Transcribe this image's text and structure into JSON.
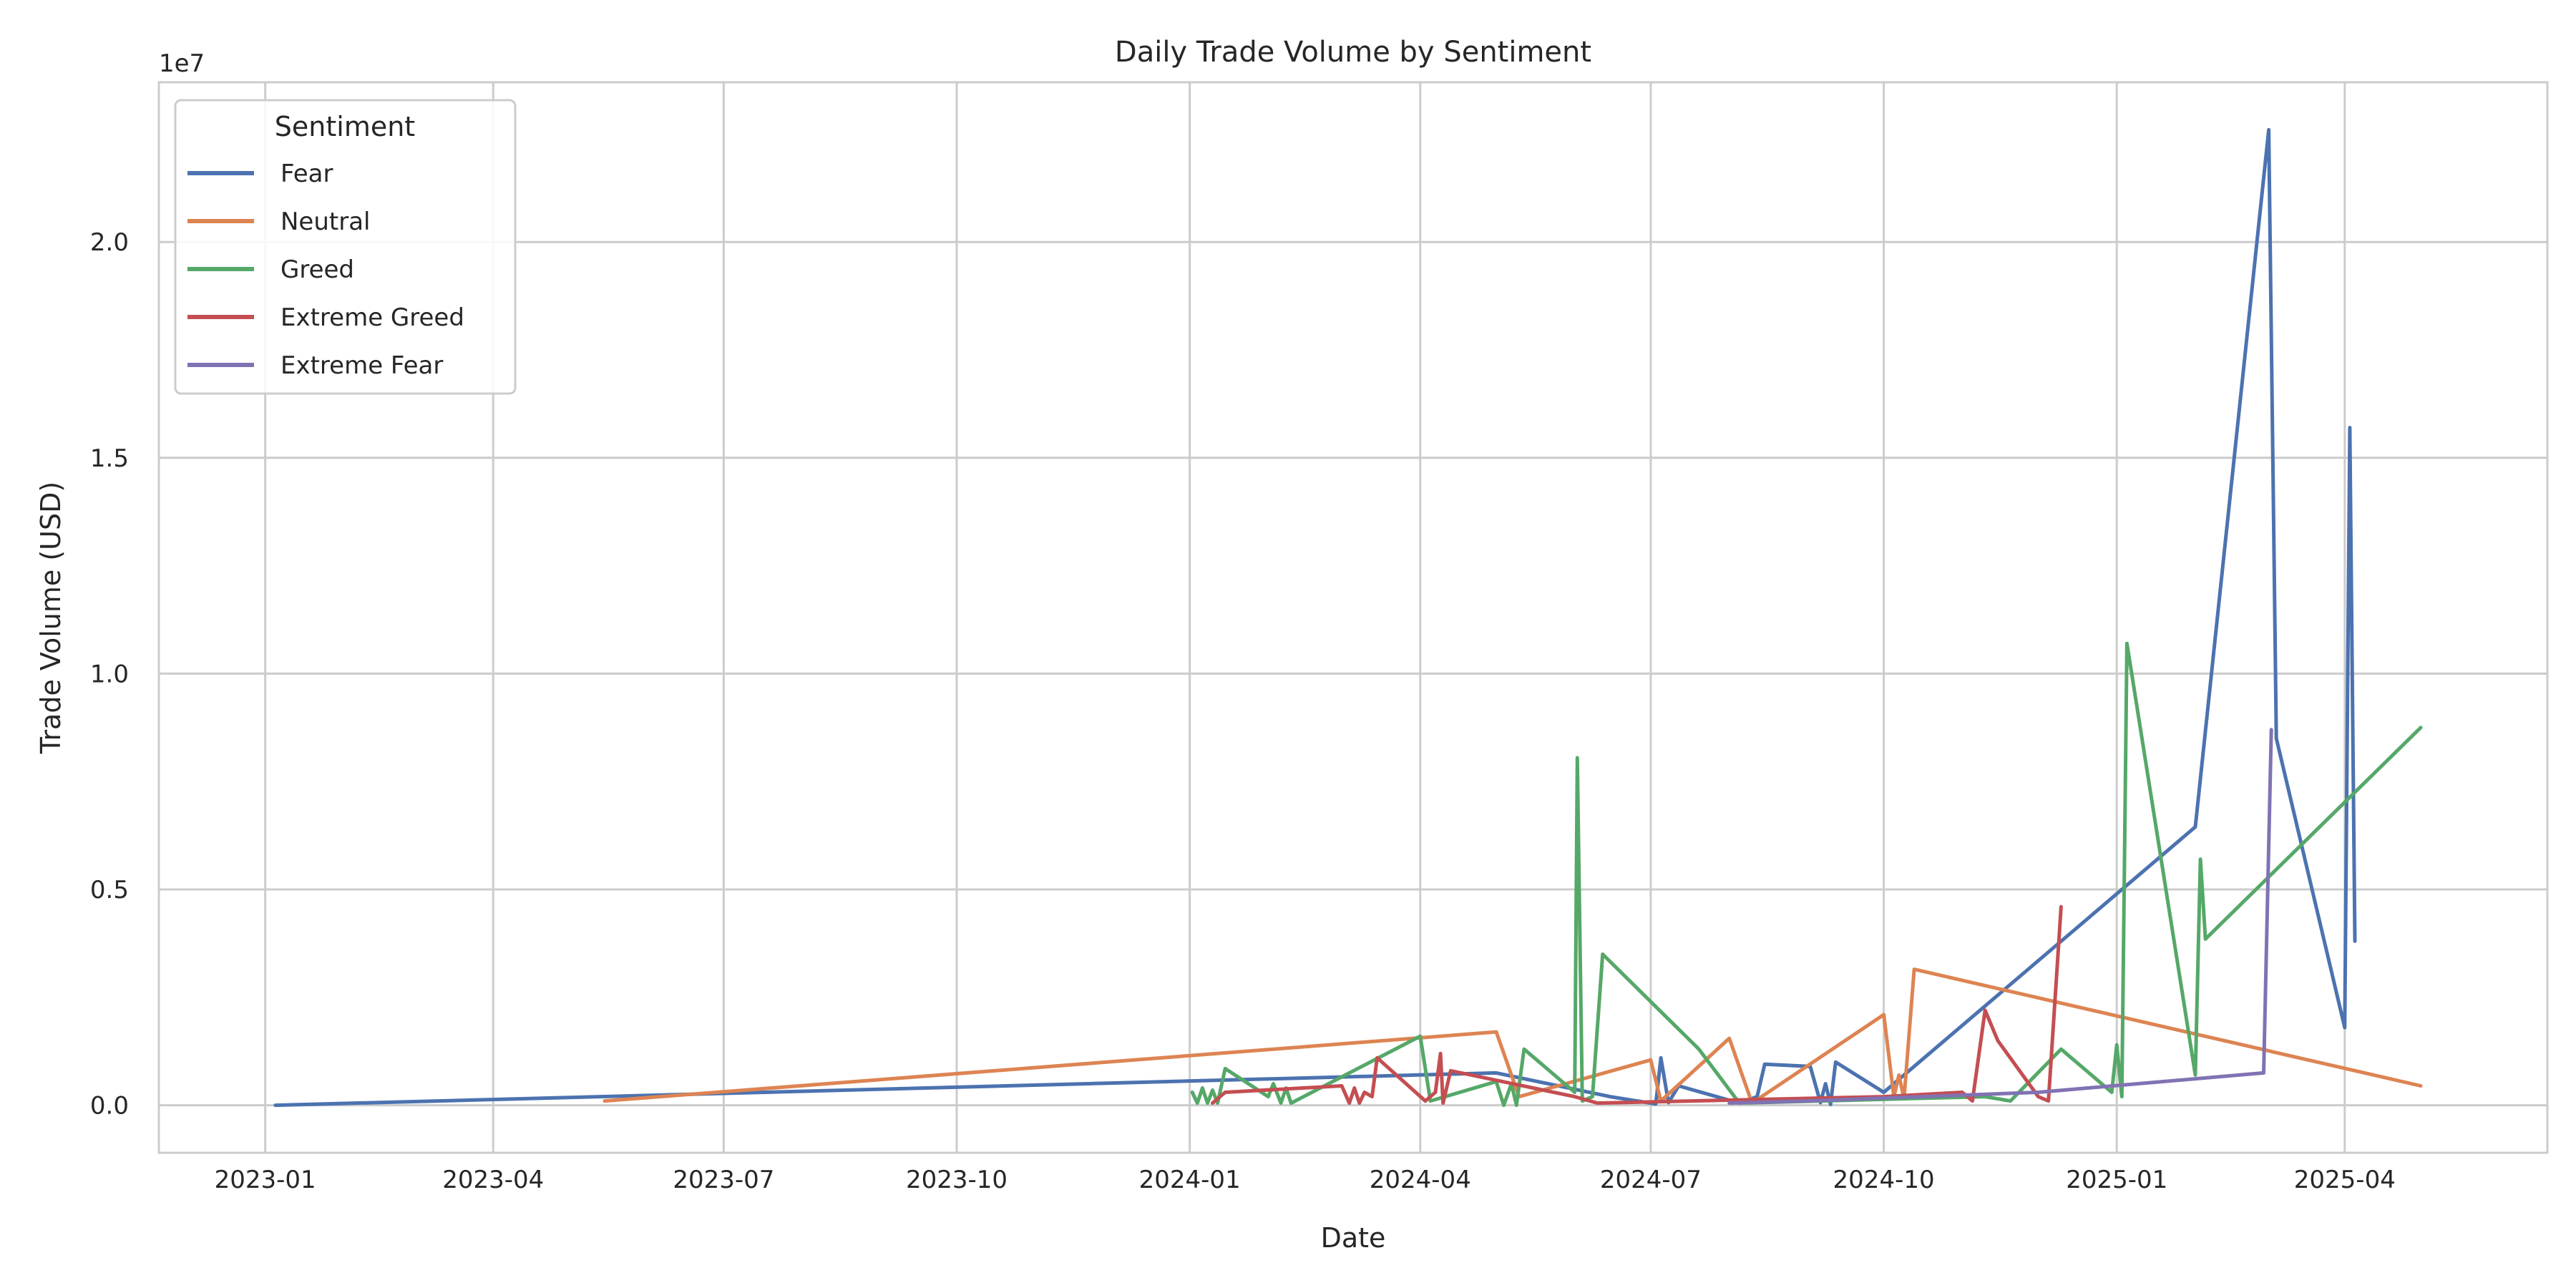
{
  "chart_data": {
    "type": "line",
    "title": "Daily Trade Volume by Sentiment",
    "xlabel": "Date",
    "ylabel": "Trade Volume (USD)",
    "y_offset_label": "1e7",
    "xlim": [
      "2022-11-20",
      "2025-06-20"
    ],
    "ylim": [
      -1100000,
      23700000
    ],
    "x_ticks": [
      "2023-01",
      "2023-04",
      "2023-07",
      "2023-10",
      "2024-01",
      "2024-04",
      "2024-07",
      "2024-10",
      "2025-01",
      "2025-04"
    ],
    "y_ticks": [
      0,
      5000000,
      10000000,
      15000000,
      20000000
    ],
    "y_tick_labels": [
      "0.0",
      "0.5",
      "1.0",
      "1.5",
      "2.0"
    ],
    "grid": true,
    "legend": {
      "title": "Sentiment",
      "placement": "top-left"
    },
    "series": [
      {
        "name": "Fear",
        "color": "#4c72b0",
        "points": [
          [
            "2023-01-05",
            0
          ],
          [
            "2024-05-01",
            750000
          ],
          [
            "2024-06-15",
            200000
          ],
          [
            "2024-07-03",
            30000
          ],
          [
            "2024-07-05",
            1100000
          ],
          [
            "2024-07-08",
            60000
          ],
          [
            "2024-07-12",
            450000
          ],
          [
            "2024-08-05",
            50000
          ],
          [
            "2024-08-12",
            200000
          ],
          [
            "2024-08-15",
            950000
          ],
          [
            "2024-09-02",
            900000
          ],
          [
            "2024-09-06",
            60000
          ],
          [
            "2024-09-08",
            500000
          ],
          [
            "2024-09-10",
            20000
          ],
          [
            "2024-09-12",
            1000000
          ],
          [
            "2024-10-01",
            300000
          ],
          [
            "2025-02-01",
            6450000
          ],
          [
            "2025-03-02",
            22600000
          ],
          [
            "2025-03-05",
            8500000
          ],
          [
            "2025-04-01",
            1800000
          ],
          [
            "2025-04-03",
            15700000
          ],
          [
            "2025-04-05",
            3800000
          ]
        ]
      },
      {
        "name": "Neutral",
        "color": "#dd8452",
        "points": [
          [
            "2023-05-15",
            100000
          ],
          [
            "2024-05-01",
            1700000
          ],
          [
            "2024-05-10",
            200000
          ],
          [
            "2024-07-01",
            1050000
          ],
          [
            "2024-07-05",
            100000
          ],
          [
            "2024-08-01",
            1550000
          ],
          [
            "2024-08-10",
            50000
          ],
          [
            "2024-10-01",
            2100000
          ],
          [
            "2024-10-05",
            200000
          ],
          [
            "2024-10-07",
            700000
          ],
          [
            "2024-10-09",
            150000
          ],
          [
            "2024-10-13",
            3150000
          ],
          [
            "2025-05-01",
            450000
          ]
        ]
      },
      {
        "name": "Greed",
        "color": "#55a868",
        "points": [
          [
            "2024-01-02",
            300000
          ],
          [
            "2024-01-04",
            50000
          ],
          [
            "2024-01-06",
            400000
          ],
          [
            "2024-01-08",
            50000
          ],
          [
            "2024-01-10",
            350000
          ],
          [
            "2024-01-12",
            50000
          ],
          [
            "2024-01-15",
            850000
          ],
          [
            "2024-02-01",
            200000
          ],
          [
            "2024-02-03",
            500000
          ],
          [
            "2024-02-06",
            50000
          ],
          [
            "2024-02-08",
            400000
          ],
          [
            "2024-02-10",
            50000
          ],
          [
            "2024-04-01",
            1600000
          ],
          [
            "2024-04-05",
            100000
          ],
          [
            "2024-05-01",
            550000
          ],
          [
            "2024-05-04",
            0
          ],
          [
            "2024-05-07",
            500000
          ],
          [
            "2024-05-09",
            0
          ],
          [
            "2024-05-12",
            1300000
          ],
          [
            "2024-06-01",
            300000
          ],
          [
            "2024-06-02",
            8050000
          ],
          [
            "2024-06-04",
            100000
          ],
          [
            "2024-06-08",
            200000
          ],
          [
            "2024-06-12",
            3500000
          ],
          [
            "2024-07-20",
            1300000
          ],
          [
            "2024-08-05",
            50000
          ],
          [
            "2024-11-10",
            200000
          ],
          [
            "2024-11-20",
            100000
          ],
          [
            "2024-12-10",
            1300000
          ],
          [
            "2024-12-30",
            300000
          ],
          [
            "2025-01-01",
            1400000
          ],
          [
            "2025-01-03",
            200000
          ],
          [
            "2025-01-05",
            10700000
          ],
          [
            "2025-02-01",
            700000
          ],
          [
            "2025-02-03",
            5700000
          ],
          [
            "2025-02-05",
            3850000
          ],
          [
            "2025-05-01",
            8750000
          ]
        ]
      },
      {
        "name": "Extreme Greed",
        "color": "#c44e52",
        "points": [
          [
            "2024-01-10",
            50000
          ],
          [
            "2024-01-15",
            300000
          ],
          [
            "2024-03-01",
            450000
          ],
          [
            "2024-03-04",
            50000
          ],
          [
            "2024-03-06",
            400000
          ],
          [
            "2024-03-08",
            50000
          ],
          [
            "2024-03-10",
            300000
          ],
          [
            "2024-03-13",
            200000
          ],
          [
            "2024-03-15",
            1100000
          ],
          [
            "2024-04-03",
            100000
          ],
          [
            "2024-04-07",
            300000
          ],
          [
            "2024-04-09",
            1200000
          ],
          [
            "2024-04-10",
            50000
          ],
          [
            "2024-04-13",
            800000
          ],
          [
            "2024-06-01",
            200000
          ],
          [
            "2024-06-10",
            50000
          ],
          [
            "2024-10-01",
            200000
          ],
          [
            "2024-11-01",
            300000
          ],
          [
            "2024-11-05",
            100000
          ],
          [
            "2024-11-10",
            2200000
          ],
          [
            "2024-11-15",
            1500000
          ],
          [
            "2024-12-01",
            200000
          ],
          [
            "2024-12-05",
            100000
          ],
          [
            "2024-12-10",
            4600000
          ]
        ]
      },
      {
        "name": "Extreme Fear",
        "color": "#8172b3",
        "points": [
          [
            "2024-08-01",
            50000
          ],
          [
            "2024-09-01",
            100000
          ],
          [
            "2024-12-01",
            300000
          ],
          [
            "2025-02-28",
            750000
          ],
          [
            "2025-03-03",
            8700000
          ]
        ]
      }
    ]
  }
}
